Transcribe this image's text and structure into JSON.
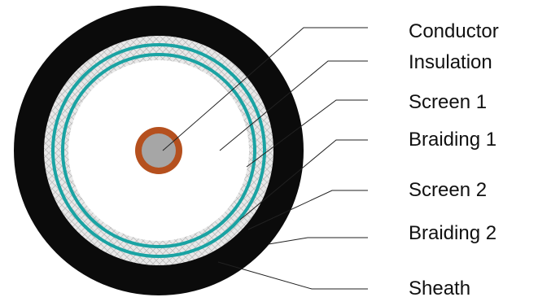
{
  "labels": {
    "conductor": "Conductor",
    "insulation": "Insulation",
    "screen1": "Screen 1",
    "braiding1": "Braiding 1",
    "screen2": "Screen 2",
    "braiding2": "Braiding 2",
    "sheath": "Sheath"
  },
  "colors": {
    "sheath": "#0b0b0b",
    "braiding_fill": "#e9e9e9",
    "braiding_hatch": "#bdbdbd",
    "screen": "#1aa3a3",
    "insulation": "#ffffff",
    "conductor_core": "#a6a6a6",
    "conductor_ring": "#b5501e",
    "leader_line": "#222222"
  }
}
